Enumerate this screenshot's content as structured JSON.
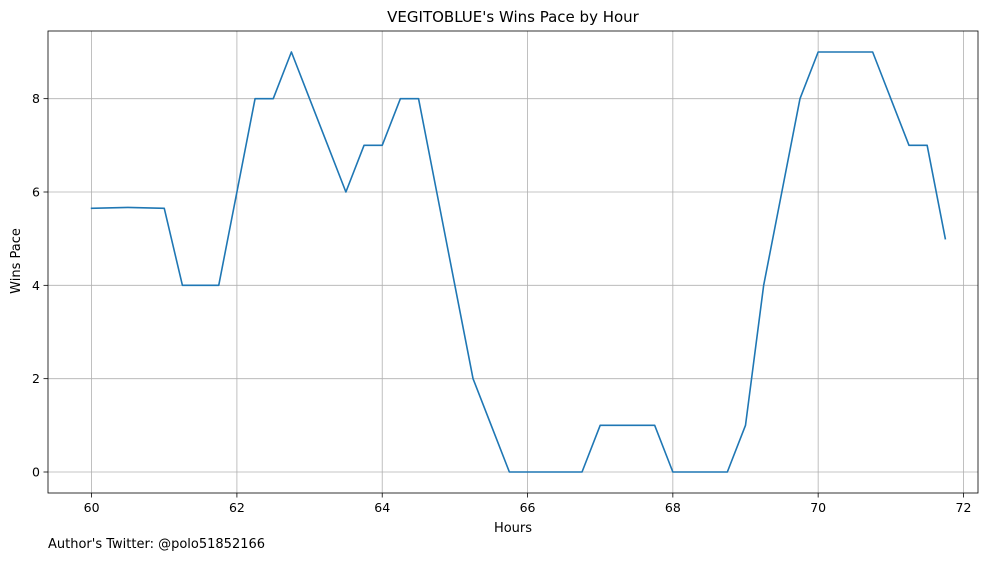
{
  "chart_data": {
    "type": "line",
    "title": "VEGITOBLUE's Wins Pace by Hour",
    "xlabel": "Hours",
    "ylabel": "Wins Pace",
    "xlim": [
      59.4,
      72.2
    ],
    "ylim": [
      -0.45,
      9.45
    ],
    "xticks": [
      60,
      62,
      64,
      66,
      68,
      70,
      72
    ],
    "yticks": [
      0,
      2,
      4,
      6,
      8
    ],
    "grid": true,
    "series": [
      {
        "color": "#1f77b4",
        "x": [
          60,
          60.5,
          61,
          61.25,
          61.5,
          61.75,
          62,
          62.25,
          62.5,
          62.75,
          63,
          63.25,
          63.5,
          63.75,
          64,
          64.25,
          64.5,
          64.75,
          65,
          65.25,
          65.5,
          65.75,
          66,
          66.25,
          66.5,
          66.75,
          67,
          67.25,
          67.5,
          67.75,
          68,
          68.25,
          68.5,
          68.75,
          69,
          69.25,
          69.5,
          69.75,
          70,
          70.25,
          70.5,
          70.75,
          71,
          71.25,
          71.5,
          71.75
        ],
        "y": [
          5.65,
          5.67,
          5.65,
          4,
          4,
          4,
          6,
          8,
          8,
          9,
          8,
          7,
          6,
          7,
          7,
          8,
          8,
          6,
          4,
          2,
          1,
          0,
          0,
          0,
          0,
          0,
          1,
          1,
          1,
          1,
          0,
          0,
          0,
          0,
          1,
          4,
          6,
          8,
          9,
          9,
          9,
          9,
          8,
          7,
          7,
          5
        ]
      }
    ]
  },
  "footer": {
    "author_note": "Author's Twitter: @polo51852166"
  }
}
